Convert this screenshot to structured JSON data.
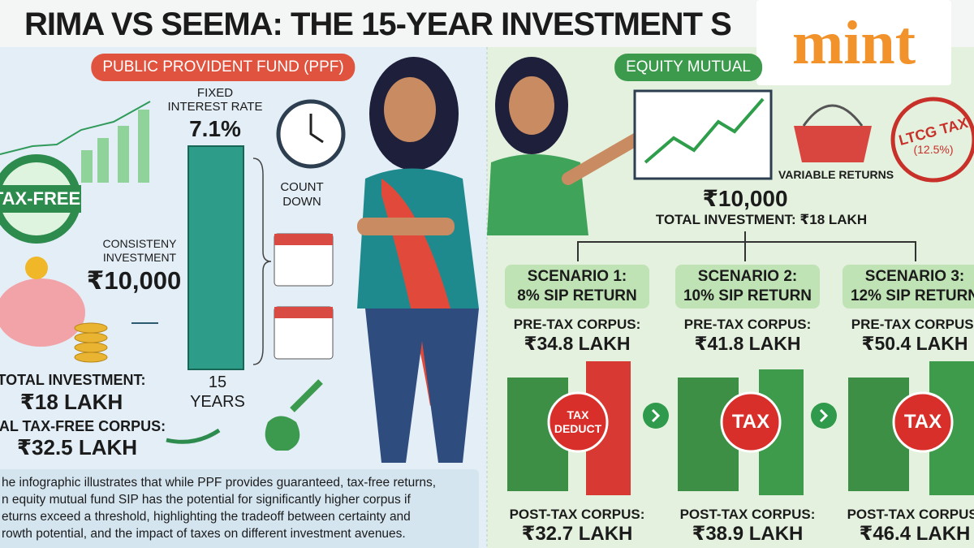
{
  "title": "RIMA VS SEEMA: THE 15-YEAR INVESTMENT S",
  "logo": "mint",
  "ppf": {
    "heading": "PUBLIC PROVIDENT FUND (PPF)",
    "badge": "TAX-FREE",
    "rate_label": [
      "FIXED",
      "INTEREST RATE"
    ],
    "rate": "7.1%",
    "countdown": [
      "COUNT",
      "DOWN"
    ],
    "investment_label": [
      "CONSISTENY",
      "INVESTMENT"
    ],
    "monthly": "₹10,000",
    "years": [
      "15",
      "YEARS"
    ],
    "total_label": "TOTAL INVESTMENT:",
    "total": "₹18 LAKH",
    "corpus_label": "NAL TAX-FREE CORPUS:",
    "corpus": "₹32.5 LAKH"
  },
  "equity": {
    "heading": "EQUITY MUTUAL",
    "tax_stamp": "LTCG TAX",
    "tax_rate": "(12.5%)",
    "variable": "VARIABLE RETURNS",
    "monthly": "₹10,000",
    "total": "TOTAL INVESTMENT: ₹18 LAKH",
    "scenarios": [
      {
        "title": "SCENARIO 1:",
        "return": "8% SIP RETURN",
        "pre_label": "PRE-TAX CORPUS:",
        "pre": "₹34.8 LAKH",
        "tax": [
          "TAX",
          "DEDUCT"
        ],
        "post_label": "POST-TAX CORPUS:",
        "post": "₹32.7 LAKH"
      },
      {
        "title": "SCENARIO 2:",
        "return": "10% SIP RETURN",
        "pre_label": "PRE-TAX CORPUS:",
        "pre": "₹41.8 LAKH",
        "tax": [
          "TAX"
        ],
        "post_label": "POST-TAX CORPUS:",
        "post": "₹38.9 LAKH"
      },
      {
        "title": "SCENARIO 3:",
        "return": "12% SIP RETURN",
        "pre_label": "PRE-TAX CORPUS:",
        "pre": "₹50.4 LAKH",
        "tax": [
          "TAX"
        ],
        "post_label": "POST-TAX CORPUS:",
        "post": "₹46.4 LAKH"
      }
    ]
  },
  "caption": [
    "he infographic illustrates that while PPF provides guaranteed, tax-free returns,",
    "n equity mutual fund SIP has the potential for significantly higher corpus if",
    "eturns exceed a threshold, highlighting the tradeoff between certainty and",
    "rowth potential, and the impact of taxes on different investment avenues."
  ]
}
